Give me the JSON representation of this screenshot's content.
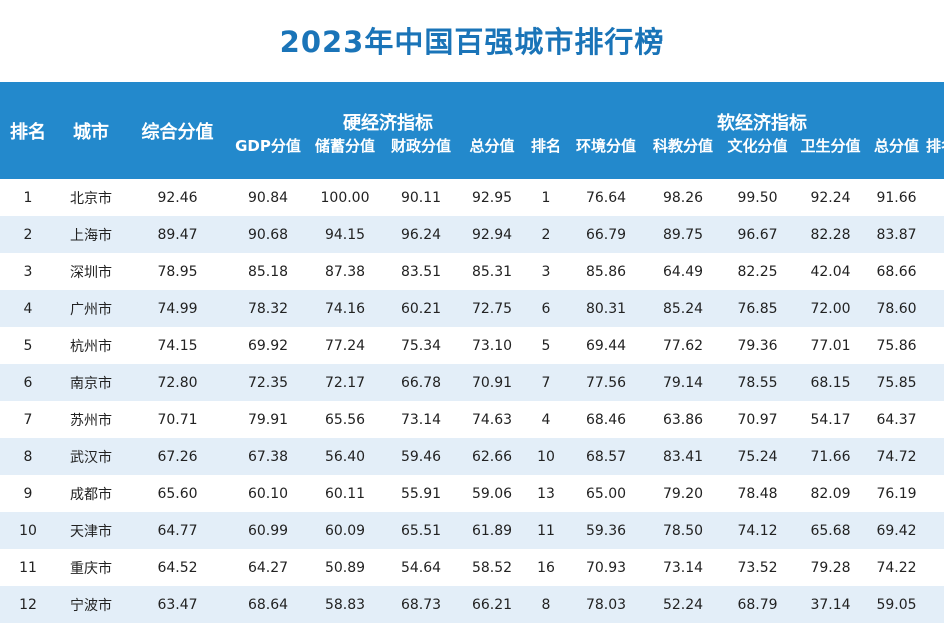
{
  "title": "2023年中国百强城市排行榜",
  "header": {
    "rank": "排名",
    "city": "城市",
    "overall": "综合分值",
    "hard_group": "硬经济指标",
    "soft_group": "软经济指标",
    "hard_cols": [
      "GDP分值",
      "储蓄分值",
      "财政分值",
      "总分值",
      "排名"
    ],
    "soft_cols": [
      "环境分值",
      "科教分值",
      "文化分值",
      "卫生分值",
      "总分值",
      "排名"
    ]
  },
  "rows": [
    {
      "rank": "1",
      "city": "北京市",
      "overall": "92.46",
      "gdp": "90.84",
      "savings": "100.00",
      "fiscal": "90.11",
      "hard_total": "92.95",
      "hard_rank": "1",
      "env": "76.64",
      "edu": "98.26",
      "culture": "99.50",
      "health": "92.24",
      "soft_total": "91.66"
    },
    {
      "rank": "2",
      "city": "上海市",
      "overall": "89.47",
      "gdp": "90.68",
      "savings": "94.15",
      "fiscal": "96.24",
      "hard_total": "92.94",
      "hard_rank": "2",
      "env": "66.79",
      "edu": "89.75",
      "culture": "96.67",
      "health": "82.28",
      "soft_total": "83.87"
    },
    {
      "rank": "3",
      "city": "深圳市",
      "overall": "78.95",
      "gdp": "85.18",
      "savings": "87.38",
      "fiscal": "83.51",
      "hard_total": "85.31",
      "hard_rank": "3",
      "env": "85.86",
      "edu": "64.49",
      "culture": "82.25",
      "health": "42.04",
      "soft_total": "68.66"
    },
    {
      "rank": "4",
      "city": "广州市",
      "overall": "74.99",
      "gdp": "78.32",
      "savings": "74.16",
      "fiscal": "60.21",
      "hard_total": "72.75",
      "hard_rank": "6",
      "env": "80.31",
      "edu": "85.24",
      "culture": "76.85",
      "health": "72.00",
      "soft_total": "78.60"
    },
    {
      "rank": "5",
      "city": "杭州市",
      "overall": "74.15",
      "gdp": "69.92",
      "savings": "77.24",
      "fiscal": "75.34",
      "hard_total": "73.10",
      "hard_rank": "5",
      "env": "69.44",
      "edu": "77.62",
      "culture": "79.36",
      "health": "77.01",
      "soft_total": "75.86"
    },
    {
      "rank": "6",
      "city": "南京市",
      "overall": "72.80",
      "gdp": "72.35",
      "savings": "72.17",
      "fiscal": "66.78",
      "hard_total": "70.91",
      "hard_rank": "7",
      "env": "77.56",
      "edu": "79.14",
      "culture": "78.55",
      "health": "68.15",
      "soft_total": "75.85"
    },
    {
      "rank": "7",
      "city": "苏州市",
      "overall": "70.71",
      "gdp": "79.91",
      "savings": "65.56",
      "fiscal": "73.14",
      "hard_total": "74.63",
      "hard_rank": "4",
      "env": "68.46",
      "edu": "63.86",
      "culture": "70.97",
      "health": "54.17",
      "soft_total": "64.37"
    },
    {
      "rank": "8",
      "city": "武汉市",
      "overall": "67.26",
      "gdp": "67.38",
      "savings": "56.40",
      "fiscal": "59.46",
      "hard_total": "62.66",
      "hard_rank": "10",
      "env": "68.57",
      "edu": "83.41",
      "culture": "75.24",
      "health": "71.66",
      "soft_total": "74.72"
    },
    {
      "rank": "9",
      "city": "成都市",
      "overall": "65.60",
      "gdp": "60.10",
      "savings": "60.11",
      "fiscal": "55.91",
      "hard_total": "59.06",
      "hard_rank": "13",
      "env": "65.00",
      "edu": "79.20",
      "culture": "78.48",
      "health": "82.09",
      "soft_total": "76.19"
    },
    {
      "rank": "10",
      "city": "天津市",
      "overall": "64.77",
      "gdp": "60.99",
      "savings": "60.09",
      "fiscal": "65.51",
      "hard_total": "61.89",
      "hard_rank": "11",
      "env": "59.36",
      "edu": "78.50",
      "culture": "74.12",
      "health": "65.68",
      "soft_total": "69.42"
    },
    {
      "rank": "11",
      "city": "重庆市",
      "overall": "64.52",
      "gdp": "64.27",
      "savings": "50.89",
      "fiscal": "54.64",
      "hard_total": "58.52",
      "hard_rank": "16",
      "env": "70.93",
      "edu": "73.14",
      "culture": "73.52",
      "health": "79.28",
      "soft_total": "74.22"
    },
    {
      "rank": "12",
      "city": "宁波市",
      "overall": "63.47",
      "gdp": "68.64",
      "savings": "58.83",
      "fiscal": "68.73",
      "hard_total": "66.21",
      "hard_rank": "8",
      "env": "78.03",
      "edu": "52.24",
      "culture": "68.79",
      "health": "37.14",
      "soft_total": "59.05"
    }
  ]
}
